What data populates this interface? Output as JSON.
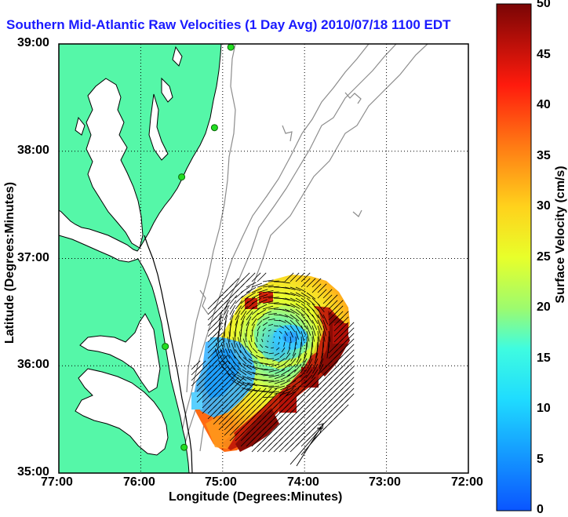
{
  "title": "Southern Mid-Atlantic Raw Velocities (1 Day Avg) 2010/07/18 1100 EDT",
  "x_axis": {
    "label": "Longitude (Degrees:Minutes)",
    "ticks": [
      "77:00",
      "76:00",
      "75:00",
      "74:00",
      "73:00",
      "72:00"
    ]
  },
  "y_axis": {
    "label": "Latitude (Degrees:Minutes)",
    "ticks": [
      "39:00",
      "38:00",
      "37:00",
      "36:00",
      "35:00"
    ]
  },
  "colorbar": {
    "label": "Surface Velocity (cm/s)",
    "ticks": [
      "50",
      "45",
      "40",
      "35",
      "30",
      "25",
      "20",
      "15",
      "10",
      "5",
      "0"
    ],
    "min": 0,
    "max": 50
  },
  "extent": {
    "lon_west": -77.0,
    "lon_east": -72.0,
    "lat_south": 35.0,
    "lat_north": 39.0
  },
  "colors": {
    "land": "#55f7a8",
    "coast_line": "#000000",
    "bathymetry": "#888888",
    "stations": "#22dd22",
    "vectors": "#000000",
    "title": "#1a1aff"
  },
  "stations": [
    {
      "lon": -74.9,
      "lat": 38.97
    },
    {
      "lon": -75.1,
      "lat": 38.22
    },
    {
      "lon": -75.5,
      "lat": 37.76
    },
    {
      "lon": -75.7,
      "lat": 36.18
    },
    {
      "lon": -75.47,
      "lat": 35.24
    }
  ],
  "velocity_field": {
    "eddy_center": {
      "lon": -74.4,
      "lat": 36.25
    },
    "slow_region": {
      "lon": -75.2,
      "lat": 35.7
    },
    "fast_jet": "Gulf Stream front along southern and eastern edge"
  }
}
